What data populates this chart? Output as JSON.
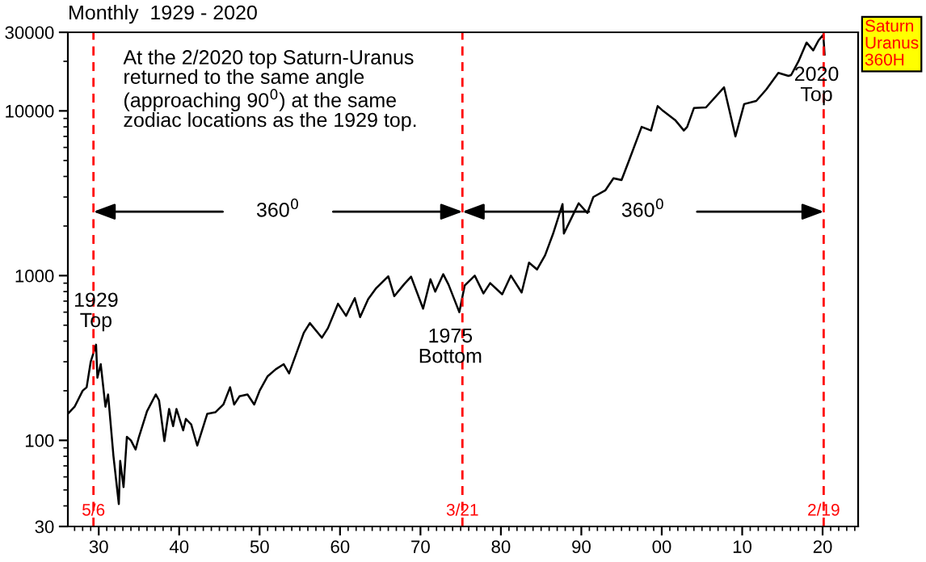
{
  "chart_data": {
    "type": "line",
    "title": "Monthly  1929 - 2020",
    "x": [
      "1926-03",
      "1927-01",
      "1928-01",
      "1928-07",
      "1929-01",
      "1929-09",
      "1929-11",
      "1930-04",
      "1930-11",
      "1931-03",
      "1931-11",
      "1932-07",
      "1932-09",
      "1933-02",
      "1933-07",
      "1934-01",
      "1934-08",
      "1935-01",
      "1936-01",
      "1937-02",
      "1937-07",
      "1938-03",
      "1938-10",
      "1939-04",
      "1939-09",
      "1940-07",
      "1940-11",
      "1941-07",
      "1942-04",
      "1943-07",
      "1944-07",
      "1945-07",
      "1946-05",
      "1946-11",
      "1947-07",
      "1948-07",
      "1949-05",
      "1950-01",
      "1951-01",
      "1952-01",
      "1953-01",
      "1953-09",
      "1954-07",
      "1955-07",
      "1956-04",
      "1957-10",
      "1958-07",
      "1959-10",
      "1960-10",
      "1961-11",
      "1962-07",
      "1963-07",
      "1964-07",
      "1966-01",
      "1966-10",
      "1968-01",
      "1968-11",
      "1970-05",
      "1971-04",
      "1971-11",
      "1972-11",
      "1973-07",
      "1974-11",
      "1975-07",
      "1976-10",
      "1977-11",
      "1978-09",
      "1980-03",
      "1981-04",
      "1982-08",
      "1983-07",
      "1984-07",
      "1985-07",
      "1986-07",
      "1987-09",
      "1987-11",
      "1988-07",
      "1989-09",
      "1990-10",
      "1991-07",
      "1993-01",
      "1994-01",
      "1995-01",
      "1996-01",
      "1997-07",
      "1998-09",
      "1999-07",
      "2000-03",
      "2001-09",
      "2002-10",
      "2003-03",
      "2004-01",
      "2005-07",
      "2007-10",
      "2009-03",
      "2010-04",
      "2011-10",
      "2013-01",
      "2014-07",
      "2015-10",
      "2016-02",
      "2017-01",
      "2018-01",
      "2018-11",
      "2019-07",
      "2020-02",
      "2020-04"
    ],
    "series": [
      {
        "color": "#000000",
        "values": [
          145,
          160,
          200,
          210,
          300,
          381,
          240,
          290,
          160,
          190,
          80,
          41,
          75,
          52,
          105,
          100,
          88,
          105,
          150,
          190,
          175,
          99,
          155,
          122,
          155,
          115,
          135,
          125,
          93,
          145,
          148,
          165,
          210,
          165,
          185,
          190,
          165,
          200,
          245,
          270,
          290,
          255,
          330,
          450,
          515,
          420,
          480,
          675,
          570,
          730,
          560,
          720,
          840,
          990,
          750,
          890,
          985,
          630,
          950,
          800,
          1020,
          880,
          600,
          870,
          1000,
          780,
          900,
          770,
          1000,
          790,
          1200,
          1090,
          1330,
          1800,
          2720,
          1800,
          2100,
          2750,
          2400,
          3000,
          3300,
          3900,
          3800,
          5100,
          8000,
          7600,
          10700,
          10000,
          8800,
          7600,
          8000,
          10400,
          10500,
          13900,
          7000,
          11000,
          11500,
          13500,
          17000,
          16300,
          16500,
          20000,
          26000,
          23300,
          26800,
          29000,
          22000
        ]
      }
    ],
    "log": true,
    "marker": "none",
    "line_style": "solid",
    "grid": false,
    "xlim": [
      "1926-03",
      "2024-06"
    ],
    "ylim": [
      30,
      30000
    ],
    "xticks": [
      {
        "value": "1930-01-01",
        "label": "30"
      },
      {
        "value": "1940-01-01",
        "label": "40"
      },
      {
        "value": "1950-01-01",
        "label": "50"
      },
      {
        "value": "1960-01-01",
        "label": "60"
      },
      {
        "value": "1970-01-01",
        "label": "70"
      },
      {
        "value": "1980-01-01",
        "label": "80"
      },
      {
        "value": "1990-01-01",
        "label": "90"
      },
      {
        "value": "2000-01-01",
        "label": "00"
      },
      {
        "value": "2010-01-01",
        "label": "10"
      },
      {
        "value": "2020-01-01",
        "label": "20"
      }
    ],
    "yticks": [
      30,
      100,
      1000,
      10000,
      30000
    ],
    "ref_lines": [
      {
        "axis": "x",
        "value": "1929-05-06",
        "label": "5/6",
        "color": "#ff0000",
        "line_style": "dashed"
      },
      {
        "axis": "x",
        "value": "1975-03-21",
        "label": "3/21",
        "color": "#ff0000",
        "line_style": "dashed"
      },
      {
        "axis": "x",
        "value": "2020-02-19",
        "label": "2/19",
        "color": "#ff0000",
        "line_style": "dashed"
      }
    ],
    "annotations": [
      "At the 2/2020 top Saturn-Uranus\nreturned to the same angle\n(approaching 90$^{0}$) at the same\nzodiac locations as the 1929 top.",
      "Saturn\nUranus\n360H",
      "360$^{0}$",
      "360$^{0}$",
      {
        "text": "1929\nTop",
        "x": "1929-09",
        "y": 381
      },
      {
        "text": "1975\nBottom",
        "x": "1974-11",
        "y": 600
      },
      {
        "text": "2020\nTop",
        "x": "2020-02",
        "y": 29000
      }
    ]
  }
}
